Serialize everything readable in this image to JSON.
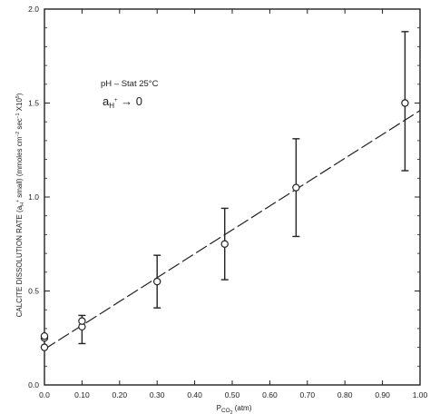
{
  "chart_data": {
    "type": "scatter",
    "title": "",
    "xlabel": "P",
    "xlabel_sub": "CO",
    "xlabel_sub2": "2",
    "xlabel_unit": " (atm)",
    "ylabel": "CALCITE DISSOLUTION RATE (a",
    "ylabel_sub": "H",
    "ylabel_sup": "+",
    "ylabel_rest": " small) (mmoles cm",
    "ylabel_exp1": "−2",
    "ylabel_mid": " sec",
    "ylabel_exp2": "−1",
    "ylabel_end": " X10",
    "ylabel_exp3": "5",
    "ylabel_close": ")",
    "xlim": [
      0.0,
      1.0
    ],
    "ylim": [
      0.0,
      2.0
    ],
    "x_ticks": [
      "0.0",
      "0.10",
      "0.20",
      "0.30",
      "0.40",
      "0.50",
      "0.60",
      "0.70",
      "0.80",
      "0.90",
      "1.00"
    ],
    "y_ticks": [
      "0.0",
      "0.5",
      "1.0",
      "1.5",
      "2.0"
    ],
    "grid": false,
    "annotations": {
      "line1": "pH – Stat 25°C",
      "line2_a": "a",
      "line2_sub": "H",
      "line2_sup": "+",
      "line2_arrow": " → 0"
    },
    "points": [
      {
        "x": 0.0,
        "y": 0.2,
        "err_low": 0.2,
        "err_high": 0.2
      },
      {
        "x": 0.0,
        "y": 0.25,
        "err_low": 0.25,
        "err_high": 0.25
      },
      {
        "x": 0.0,
        "y": 0.26,
        "err_low": 0.26,
        "err_high": 0.26
      },
      {
        "x": 0.1,
        "y": 0.31,
        "err_low": 0.22,
        "err_high": 0.37
      },
      {
        "x": 0.1,
        "y": 0.34,
        "err_low": 0.34,
        "err_high": 0.34
      },
      {
        "x": 0.3,
        "y": 0.55,
        "err_low": 0.41,
        "err_high": 0.69
      },
      {
        "x": 0.48,
        "y": 0.75,
        "err_low": 0.56,
        "err_high": 0.94
      },
      {
        "x": 0.67,
        "y": 1.05,
        "err_low": 0.79,
        "err_high": 1.31
      },
      {
        "x": 0.96,
        "y": 1.5,
        "err_low": 1.14,
        "err_high": 1.88
      }
    ],
    "fit_line": {
      "x": [
        0.0,
        1.0
      ],
      "y": [
        0.19,
        1.46
      ],
      "style": "dashed"
    }
  }
}
